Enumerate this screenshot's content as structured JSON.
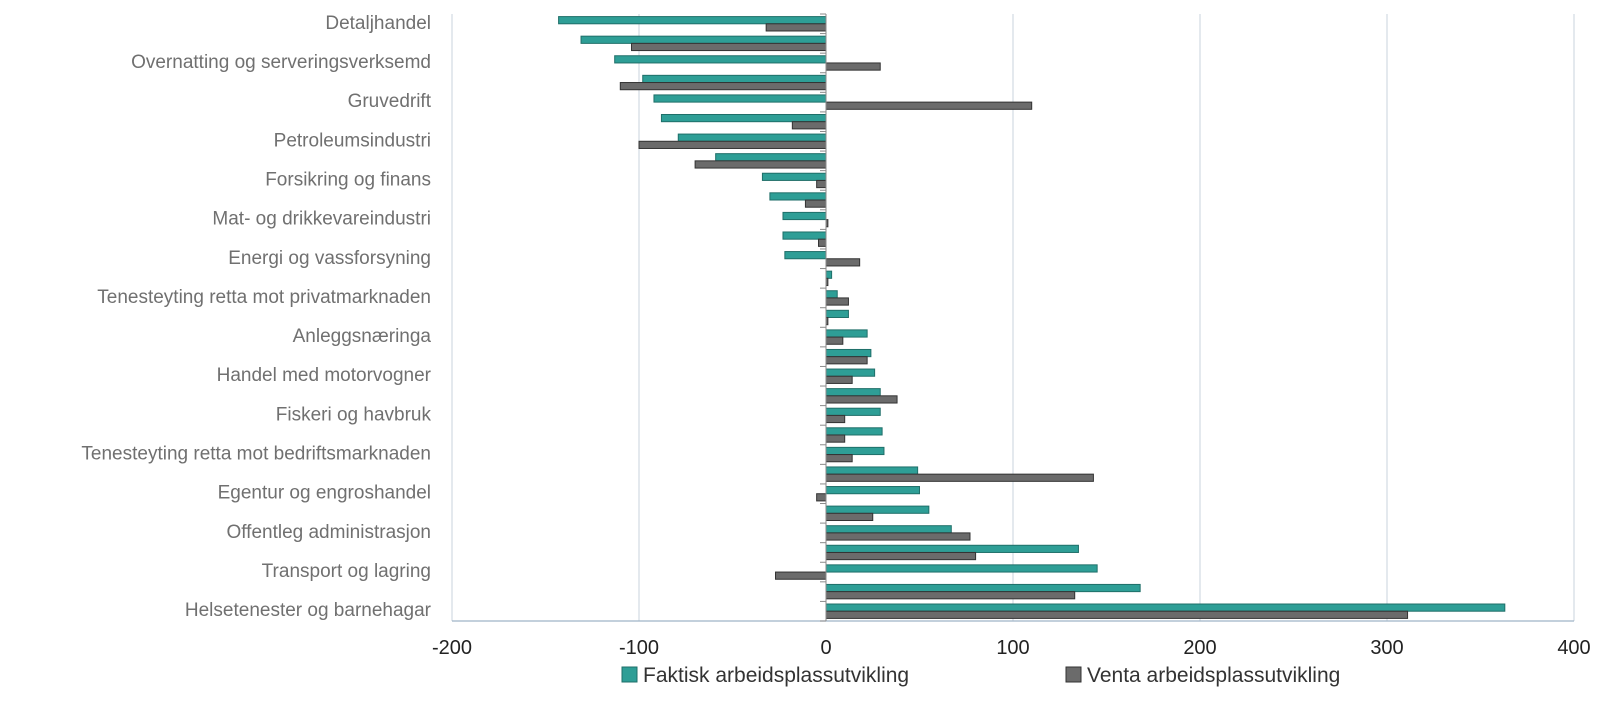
{
  "chart_data": {
    "type": "bar",
    "orientation": "horizontal",
    "categories": [
      "Detaljhandel",
      "",
      "Overnatting og serveringsverksemd",
      "",
      "Gruvedrift",
      "",
      "Petroleumsindustri",
      "",
      "Forsikring og finans",
      "",
      "Mat- og drikkevareindustri",
      "",
      "Energi og vassforsyning",
      "",
      "Tenesteyting retta mot privatmarknaden",
      "",
      "Anleggsnæringa",
      "",
      "Handel med motorvogner",
      "",
      "Fiskeri og havbruk",
      "",
      "Tenesteyting retta mot bedriftsmarknaden",
      "",
      "Egentur og engroshandel",
      "",
      "Offentleg administrasjon",
      "",
      "Transport og lagring",
      "",
      "Helsetenester og barnehagar"
    ],
    "series": [
      {
        "name": "Faktisk arbeidsplassutvikling",
        "color": "#2e9e96",
        "values": [
          -143,
          -131,
          -113,
          -98,
          -92,
          -88,
          -79,
          -59,
          -34,
          -30,
          -23,
          -23,
          -22,
          3,
          6,
          12,
          22,
          24,
          26,
          29,
          29,
          30,
          31,
          49,
          50,
          55,
          67,
          135,
          145,
          168,
          363
        ]
      },
      {
        "name": "Venta arbeidsplassutvikling",
        "color": "#6b6b6b",
        "values": [
          -32,
          -104,
          29,
          -110,
          110,
          -18,
          -100,
          -70,
          -5,
          -11,
          1,
          -4,
          18,
          1,
          12,
          1,
          9,
          22,
          14,
          38,
          10,
          10,
          14,
          143,
          -5,
          25,
          77,
          80,
          -27,
          133,
          311
        ]
      }
    ],
    "xlim": [
      -200,
      400
    ],
    "xticks": [
      "-200",
      "-100",
      "0",
      "100",
      "200",
      "300",
      "400"
    ],
    "grid": "vertical",
    "legend": "bottom"
  }
}
